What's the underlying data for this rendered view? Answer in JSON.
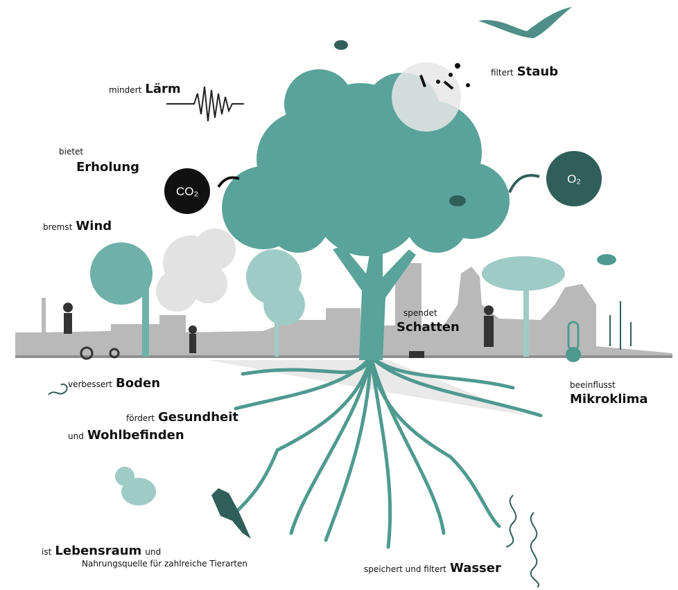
{
  "labels": [
    {
      "parts": [
        "mindert",
        "Lärm"
      ]
    },
    {
      "parts": [
        "bietet",
        "Erholung"
      ]
    },
    {
      "parts": [
        "bremst",
        "Wind"
      ]
    },
    {
      "parts": [
        "filtert",
        "Staub"
      ]
    },
    {
      "parts": [
        "spendet",
        "Schatten"
      ]
    },
    {
      "parts": [
        "beeinflusst",
        "Mikroklima"
      ]
    },
    {
      "parts": [
        "verbessert",
        "Boden"
      ]
    },
    {
      "parts": [
        "fördert",
        "Gesundheit",
        "und",
        "Wohlbefinden"
      ]
    },
    {
      "parts": [
        "ist",
        "Lebensraum",
        "und",
        "Nahrungsquelle für zahlreiche Tierarten"
      ]
    },
    {
      "parts": [
        "speichert und filtert",
        "Wasser"
      ]
    }
  ],
  "gases": {
    "co2": "CO₂",
    "o2": "O₂"
  }
}
